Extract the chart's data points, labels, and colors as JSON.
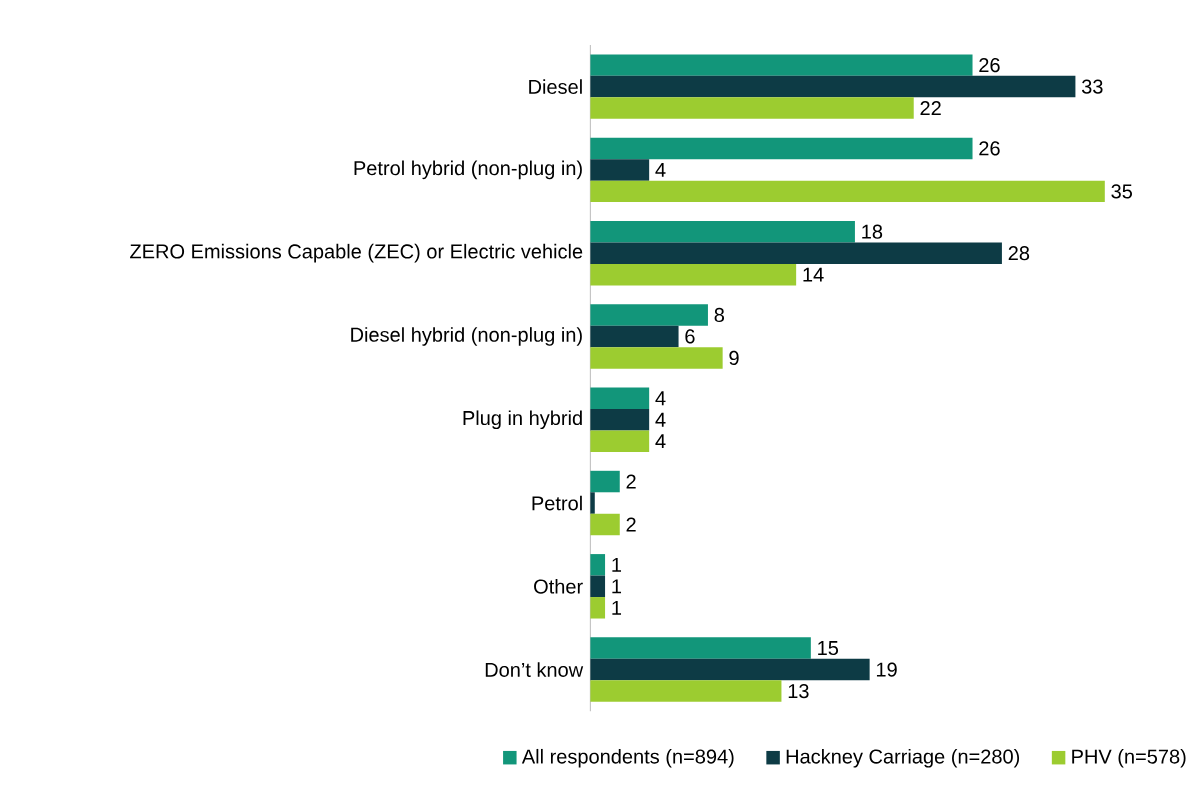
{
  "chart_data": {
    "type": "bar",
    "orientation": "horizontal",
    "categories": [
      "Diesel",
      "Petrol hybrid (non-plug in)",
      "ZERO Emissions Capable (ZEC) or Electric vehicle",
      "Diesel hybrid (non-plug in)",
      "Plug in hybrid",
      "Petrol",
      "Other",
      "Don’t know"
    ],
    "series": [
      {
        "name": "All respondents (n=894)",
        "color": "#12967a",
        "values": [
          26,
          26,
          18,
          8,
          4,
          2,
          1,
          15
        ]
      },
      {
        "name": "Hackney Carriage (n=280)",
        "color": "#0d3b45",
        "values": [
          33,
          4,
          28,
          6,
          4,
          0.3,
          1,
          19
        ],
        "value_labels": [
          "33",
          "4",
          "28",
          "6",
          "4",
          null,
          "1",
          "19"
        ]
      },
      {
        "name": "PHV (n=578)",
        "color": "#9ccc30",
        "values": [
          22,
          35,
          14,
          9,
          4,
          2,
          1,
          13
        ]
      }
    ],
    "tick_labels": "y",
    "data_labels": true,
    "legend": "bottom"
  }
}
